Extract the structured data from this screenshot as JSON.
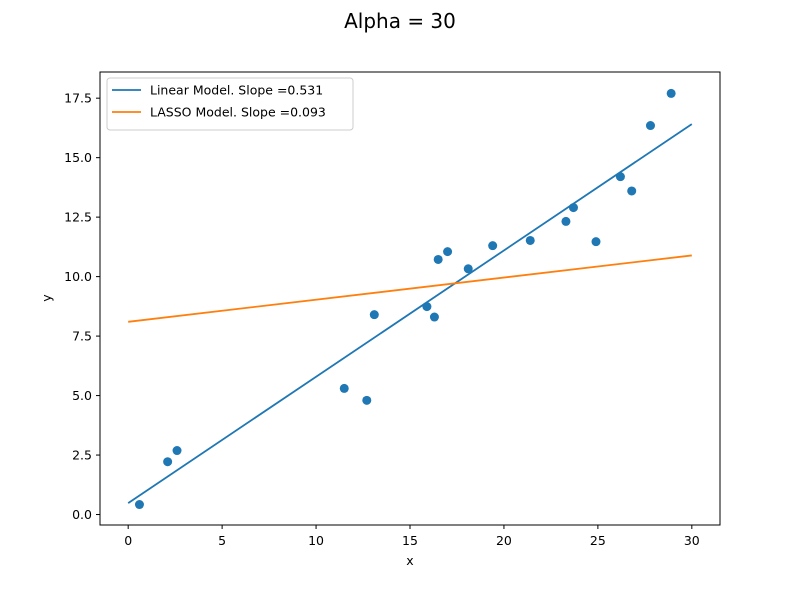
{
  "chart_data": {
    "type": "scatter",
    "title": "Alpha = 30",
    "xlabel": "x",
    "ylabel": "y",
    "xlim": [
      -1.5,
      31.5
    ],
    "ylim": [
      -0.44,
      18.6
    ],
    "xticks": [
      0,
      5,
      10,
      15,
      20,
      25,
      30
    ],
    "xtick_labels": [
      "0",
      "5",
      "10",
      "15",
      "20",
      "25",
      "30"
    ],
    "yticks": [
      0,
      2.5,
      5,
      7.5,
      10,
      12.5,
      15,
      17.5
    ],
    "ytick_labels": [
      "0.0",
      "2.5",
      "5.0",
      "7.5",
      "10.0",
      "12.5",
      "15.0",
      "17.5"
    ],
    "grid": false,
    "legend_position": "top-left",
    "points": {
      "color": "#1f77b4",
      "x": [
        0.6,
        2.1,
        2.6,
        11.5,
        12.7,
        13.1,
        15.9,
        16.3,
        16.5,
        17.0,
        18.1,
        19.4,
        21.4,
        23.3,
        23.7,
        24.9,
        26.2,
        26.8,
        27.8,
        28.9
      ],
      "y": [
        0.42,
        2.22,
        2.69,
        5.3,
        4.8,
        8.4,
        8.74,
        8.3,
        10.72,
        11.05,
        10.33,
        11.3,
        11.52,
        12.32,
        12.9,
        11.47,
        14.2,
        13.6,
        16.35,
        17.7
      ]
    },
    "series": [
      {
        "name": "Linear Model. Slope =0.531",
        "color": "#1f77b4",
        "x": [
          0,
          30
        ],
        "y": [
          0.48,
          16.41
        ]
      },
      {
        "name": "LASSO Model. Slope =0.093",
        "color": "#ff7f0e",
        "x": [
          0,
          30
        ],
        "y": [
          8.1,
          10.89
        ]
      }
    ]
  }
}
